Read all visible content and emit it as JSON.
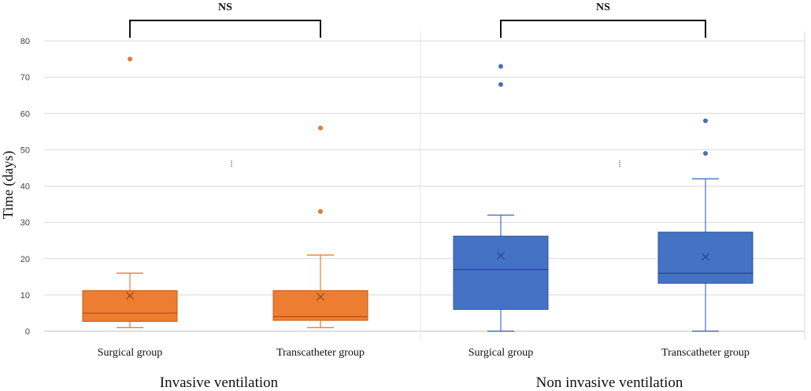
{
  "chart_data": {
    "type": "boxplot",
    "ylabel": "Time (days)",
    "ylim": [
      0,
      80
    ],
    "yticks": [
      0,
      10,
      20,
      30,
      40,
      50,
      60,
      70,
      80
    ],
    "grid": true,
    "panels": [
      {
        "group_label": "Invasive ventilation",
        "significance": "NS",
        "color": "#ED7D31",
        "boxes": [
          {
            "category": "Surgical group",
            "min": 1,
            "q1": 2.7,
            "median": 5,
            "q3": 11.2,
            "max": 16,
            "mean": 9.8,
            "outliers": [
              75
            ]
          },
          {
            "category": "Transcatheter group",
            "min": 1,
            "q1": 3,
            "median": 4,
            "q3": 11.2,
            "max": 21,
            "mean": 9.5,
            "outliers": [
              33,
              56
            ]
          }
        ]
      },
      {
        "group_label": "Non invasive ventilation",
        "significance": "NS",
        "color": "#4472C4",
        "boxes": [
          {
            "category": "Surgical group",
            "min": 0,
            "q1": 6,
            "median": 17,
            "q3": 26.2,
            "max": 32,
            "mean": 20.8,
            "outliers": [
              68,
              73
            ]
          },
          {
            "category": "Transcatheter group",
            "min": 0,
            "q1": 13.2,
            "median": 16,
            "q3": 27.3,
            "max": 42,
            "mean": 20.5,
            "outliers": [
              49,
              58
            ]
          }
        ]
      }
    ]
  }
}
